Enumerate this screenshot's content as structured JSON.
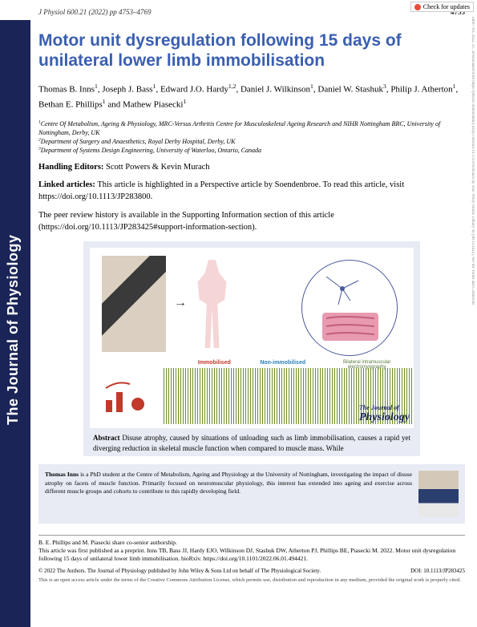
{
  "check_updates": "Check for updates",
  "journal_spine": "The Journal of Physiology",
  "header": {
    "citation": "J Physiol 600.21 (2022) pp 4753–4769",
    "page": "4753"
  },
  "title": "Motor unit dysregulation following 15 days of unilateral lower limb immobilisation",
  "authors_html": "Thomas B. Inns<sup>1</sup>, Joseph J. Bass<sup>1</sup>, Edward J.O. Hardy<sup>1,2</sup>, Daniel J. Wilkinson<sup>1</sup>, Daniel W. Stashuk<sup>3</sup>, Philip J. Atherton<sup>1</sup>, Bethan E. Phillips<sup>1</sup> and Mathew Piasecki<sup>1</sup>",
  "affiliations": [
    "Centre Of Metabolism, Ageing & Physiology, MRC-Versus Arthritis Centre for Musculoskeletal Ageing Research and NIHR Nottingham BRC, University of Nottingham, Derby, UK",
    "Department of Surgery and Anaesthetics, Royal Derby Hospital, Derby, UK",
    "Department of Systems Design Engineering, University of Waterloo, Ontario, Canada"
  ],
  "editors": {
    "label": "Handling Editors:",
    "names": "Scott Powers & Kevin Murach"
  },
  "linked": {
    "label": "Linked articles:",
    "text": "This article is highlighted in a Perspective article by Soendenbroe. To read this article, visit https://doi.org/10.1113/JP283800."
  },
  "peer": "The peer review history is available in the Supporting Information section of this article (https://doi.org/10.1113/JP283425#support-information-section).",
  "figure": {
    "immobilised": "Immobilised",
    "nonimmobilised": "Non-immobilised",
    "caption_right": "Bilateral intramuscular electromyography",
    "tag1": "The Journal of",
    "tag2": "Physiology"
  },
  "abstract": {
    "label": "Abstract",
    "text": "Disuse atrophy, caused by situations of unloading such as limb immobilisation, causes a rapid yet diverging reduction in skeletal muscle function when compared to muscle mass. While"
  },
  "bio": {
    "name": "Thomas Inns",
    "text": " is a PhD student at the Centre of Metabolism, Ageing and Physiology at the University of Nottingham, investigating the impact of disuse atrophy on facets of muscle function. Primarily focused on neuromuscular physiology, this interest has extended into ageing and exercise across different muscle groups and cohorts to contribute to this rapidly developing field."
  },
  "footer": {
    "coauth": "B. E. Phillips and M. Piasecki share co-senior authorship.",
    "preprint": "This article was first published as a preprint. Inns TB, Bass JJ, Hardy EJO, Wilkinson DJ, Stashuk DW, Atherton PJ, Phillips BE, Piasecki M. 2022. Motor unit dysregulation following 15 days of unilateral lower limb immobilisation. bioRxiv. https://doi.org/10.1101/2022.06.01.494421.",
    "copyright": "© 2022 The Authors. The Journal of Physiology published by John Wiley & Sons Ltd on behalf of The Physiological Society.",
    "doi": "DOI: 10.1113/JP283425",
    "license": "This is an open access article under the terms of the Creative Commons Attribution License, which permits use, distribution and reproduction in any medium, provided the original work is properly cited."
  },
  "sidebar": "14697793, 2022, 21, Downloaded from https://physoc.onlinelibrary.wiley.com/doi/10.1113/JP283425 by Test, Wiley Online Library on [09/11/2022]. See the Terms and Conditions"
}
